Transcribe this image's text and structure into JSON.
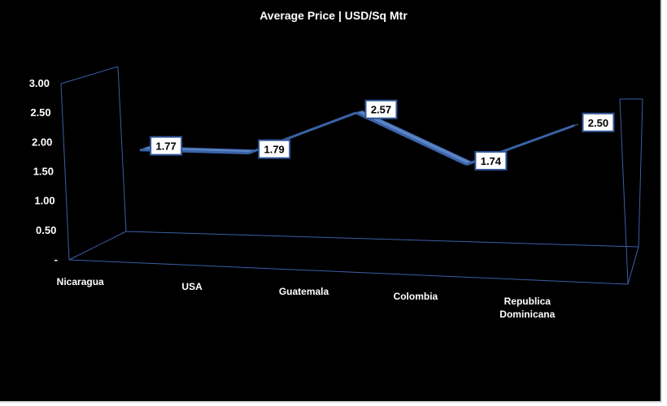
{
  "chart_data": {
    "type": "line",
    "title": "Average Price | USD/Sq Mtr",
    "categories": [
      "Nicaragua",
      "USA",
      "Guatemala",
      "Colombia",
      "Republica Dominicana"
    ],
    "category_lines": [
      [
        "Nicaragua"
      ],
      [
        "USA"
      ],
      [
        "Guatemala"
      ],
      [
        "Colombia"
      ],
      [
        "Republica",
        "Dominicana"
      ]
    ],
    "series": [
      {
        "values": [
          1.77,
          1.79,
          2.57,
          1.74,
          2.5
        ]
      }
    ],
    "data_labels": [
      "1.77",
      "1.79",
      "2.57",
      "1.74",
      "2.50"
    ],
    "y_ticks": [
      0,
      0.5,
      1.0,
      1.5,
      2.0,
      2.5,
      3.0
    ],
    "y_tick_labels": [
      "-",
      "0.50",
      "1.00",
      "1.50",
      "2.00",
      "2.50",
      "3.00"
    ],
    "ylim": [
      0,
      3
    ],
    "grid": false,
    "legend": "none",
    "colors": {
      "background": "#000000",
      "text": "#ffffff",
      "axis": "#3b5fa8",
      "ribbon_top": "#5b84c4",
      "ribbon_front": "#3a62a6",
      "label_bg": "#ffffff",
      "label_text": "#000000",
      "label_border": "#2f5597"
    }
  }
}
